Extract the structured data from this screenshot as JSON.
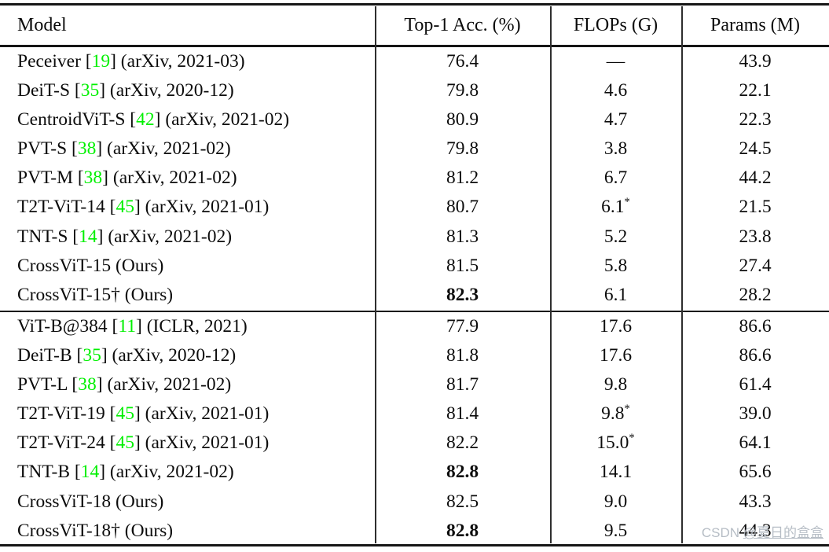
{
  "table": {
    "headers": {
      "model": "Model",
      "acc": "Top-1 Acc. (%)",
      "flops": "FLOPs (G)",
      "params": "Params (M)"
    },
    "group1": [
      {
        "model_pre": "Peceiver [",
        "model_cite": "19",
        "model_post": "] (arXiv, 2021-03)",
        "acc": "76.4",
        "acc_class": "",
        "flops": "—",
        "flops_sup": "",
        "params": "43.9"
      },
      {
        "model_pre": "DeiT-S [",
        "model_cite": "35",
        "model_post": "] (arXiv, 2020-12)",
        "acc": "79.8",
        "acc_class": "",
        "flops": "4.6",
        "flops_sup": "",
        "params": "22.1"
      },
      {
        "model_pre": "CentroidViT-S [",
        "model_cite": "42",
        "model_post": "] (arXiv, 2021-02)",
        "acc": "80.9",
        "acc_class": "",
        "flops": "4.7",
        "flops_sup": "",
        "params": "22.3"
      },
      {
        "model_pre": "PVT-S [",
        "model_cite": "38",
        "model_post": "] (arXiv, 2021-02)",
        "acc": "79.8",
        "acc_class": "",
        "flops": "3.8",
        "flops_sup": "",
        "params": "24.5"
      },
      {
        "model_pre": "PVT-M [",
        "model_cite": "38",
        "model_post": "] (arXiv, 2021-02)",
        "acc": "81.2",
        "acc_class": "",
        "flops": "6.7",
        "flops_sup": "",
        "params": "44.2"
      },
      {
        "model_pre": "T2T-ViT-14 [",
        "model_cite": "45",
        "model_post": "] (arXiv, 2021-01)",
        "acc": "80.7",
        "acc_class": "",
        "flops": "6.1",
        "flops_sup": "*",
        "params": "21.5"
      },
      {
        "model_pre": "TNT-S [",
        "model_cite": "14",
        "model_post": "] (arXiv, 2021-02)",
        "acc": "81.3",
        "acc_class": "",
        "flops": "5.2",
        "flops_sup": "",
        "params": "23.8"
      },
      {
        "model_pre": "CrossViT-15 (Ours)",
        "model_cite": "",
        "model_post": "",
        "acc": "81.5",
        "acc_class": "",
        "flops": "5.8",
        "flops_sup": "",
        "params": "27.4"
      },
      {
        "model_pre": "CrossViT-15† (Ours)",
        "model_cite": "",
        "model_post": "",
        "acc": "82.3",
        "acc_class": "bold",
        "flops": "6.1",
        "flops_sup": "",
        "params": "28.2"
      }
    ],
    "group2": [
      {
        "model_pre": "ViT-B@384 [",
        "model_cite": "11",
        "model_post": "] (ICLR, 2021)",
        "acc": "77.9",
        "acc_class": "",
        "flops": "17.6",
        "flops_sup": "",
        "params": "86.6"
      },
      {
        "model_pre": "DeiT-B [",
        "model_cite": "35",
        "model_post": "] (arXiv, 2020-12)",
        "acc": "81.8",
        "acc_class": "",
        "flops": "17.6",
        "flops_sup": "",
        "params": "86.6"
      },
      {
        "model_pre": "PVT-L [",
        "model_cite": "38",
        "model_post": "] (arXiv, 2021-02)",
        "acc": "81.7",
        "acc_class": "",
        "flops": "9.8",
        "flops_sup": "",
        "params": "61.4"
      },
      {
        "model_pre": "T2T-ViT-19 [",
        "model_cite": "45",
        "model_post": "] (arXiv, 2021-01)",
        "acc": "81.4",
        "acc_class": "",
        "flops": "9.8",
        "flops_sup": "*",
        "params": "39.0"
      },
      {
        "model_pre": "T2T-ViT-24 [",
        "model_cite": "45",
        "model_post": "] (arXiv, 2021-01)",
        "acc": "82.2",
        "acc_class": "",
        "flops": "15.0",
        "flops_sup": "*",
        "params": "64.1"
      },
      {
        "model_pre": "TNT-B [",
        "model_cite": "14",
        "model_post": "] (arXiv, 2021-02)",
        "acc": "82.8",
        "acc_class": "bold",
        "flops": "14.1",
        "flops_sup": "",
        "params": "65.6"
      },
      {
        "model_pre": "CrossViT-18 (Ours)",
        "model_cite": "",
        "model_post": "",
        "acc": "82.5",
        "acc_class": "",
        "flops": "9.0",
        "flops_sup": "",
        "params": "43.3"
      },
      {
        "model_pre": "CrossViT-18† (Ours)",
        "model_cite": "",
        "model_post": "",
        "acc": "82.8",
        "acc_class": "bold",
        "flops": "9.5",
        "flops_sup": "",
        "params": "44.3"
      }
    ]
  },
  "watermark": {
    "prefix": "CSDN ",
    "user": "@夏日的盒盒"
  },
  "colors": {
    "citation_green": "#00f000",
    "watermark_gray": "#b6bdc5",
    "text_black": "#0c0c0c"
  }
}
